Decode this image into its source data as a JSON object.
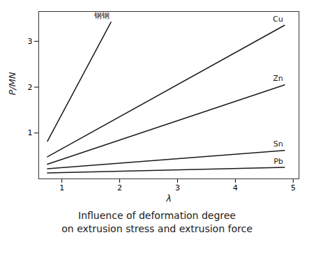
{
  "chart_data": {
    "type": "line",
    "title": "Influence of deformation degree",
    "subtitle": "on extrusion stress and extrusion force",
    "xlabel": "λ",
    "ylabel": "P/MN",
    "color": "#1a1a1a",
    "series": [
      {
        "name": "钢钢",
        "x": [
          0.75,
          1.85
        ],
        "values": [
          0.82,
          3.42
        ]
      },
      {
        "name": "Cu",
        "x": [
          0.75,
          4.85
        ],
        "values": [
          0.48,
          3.35
        ]
      },
      {
        "name": "Zn",
        "x": [
          0.75,
          4.85
        ],
        "values": [
          0.32,
          2.05
        ]
      },
      {
        "name": "Sn",
        "x": [
          0.75,
          4.85
        ],
        "values": [
          0.22,
          0.62
        ]
      },
      {
        "name": "Pb",
        "x": [
          0.75,
          4.85
        ],
        "values": [
          0.13,
          0.25
        ]
      }
    ],
    "xlim": [
      0.6,
      5.1
    ],
    "xticks": [
      1,
      2,
      3,
      4,
      5
    ],
    "ylim": [
      0.0,
      3.65
    ],
    "yticks": [
      1,
      2,
      3
    ],
    "grid": false
  }
}
